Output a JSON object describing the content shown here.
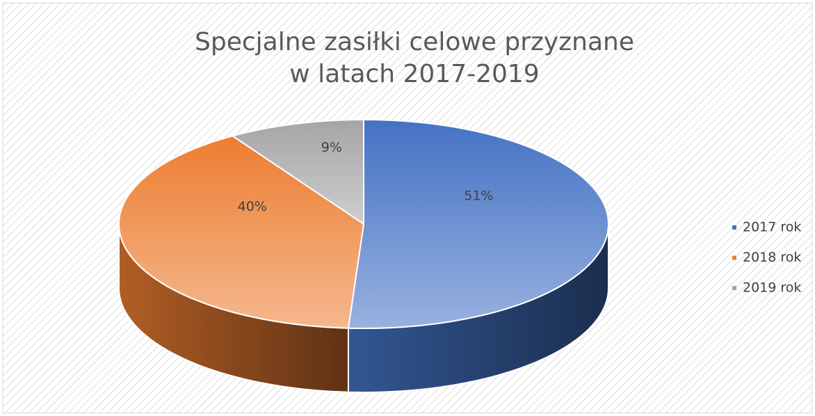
{
  "chart_data": {
    "type": "pie3d",
    "title": [
      "Specjalne zasiłki celowe przyznane",
      "w latach 2017-2019"
    ],
    "categories": [
      "2017 rok",
      "2018 rok",
      "2019 rok"
    ],
    "values": [
      51,
      40,
      9
    ],
    "value_labels": [
      "51%",
      "40%",
      "9%"
    ],
    "colors": [
      "#4472c4",
      "#ed7d31",
      "#a5a5a5"
    ],
    "legend": "right"
  }
}
